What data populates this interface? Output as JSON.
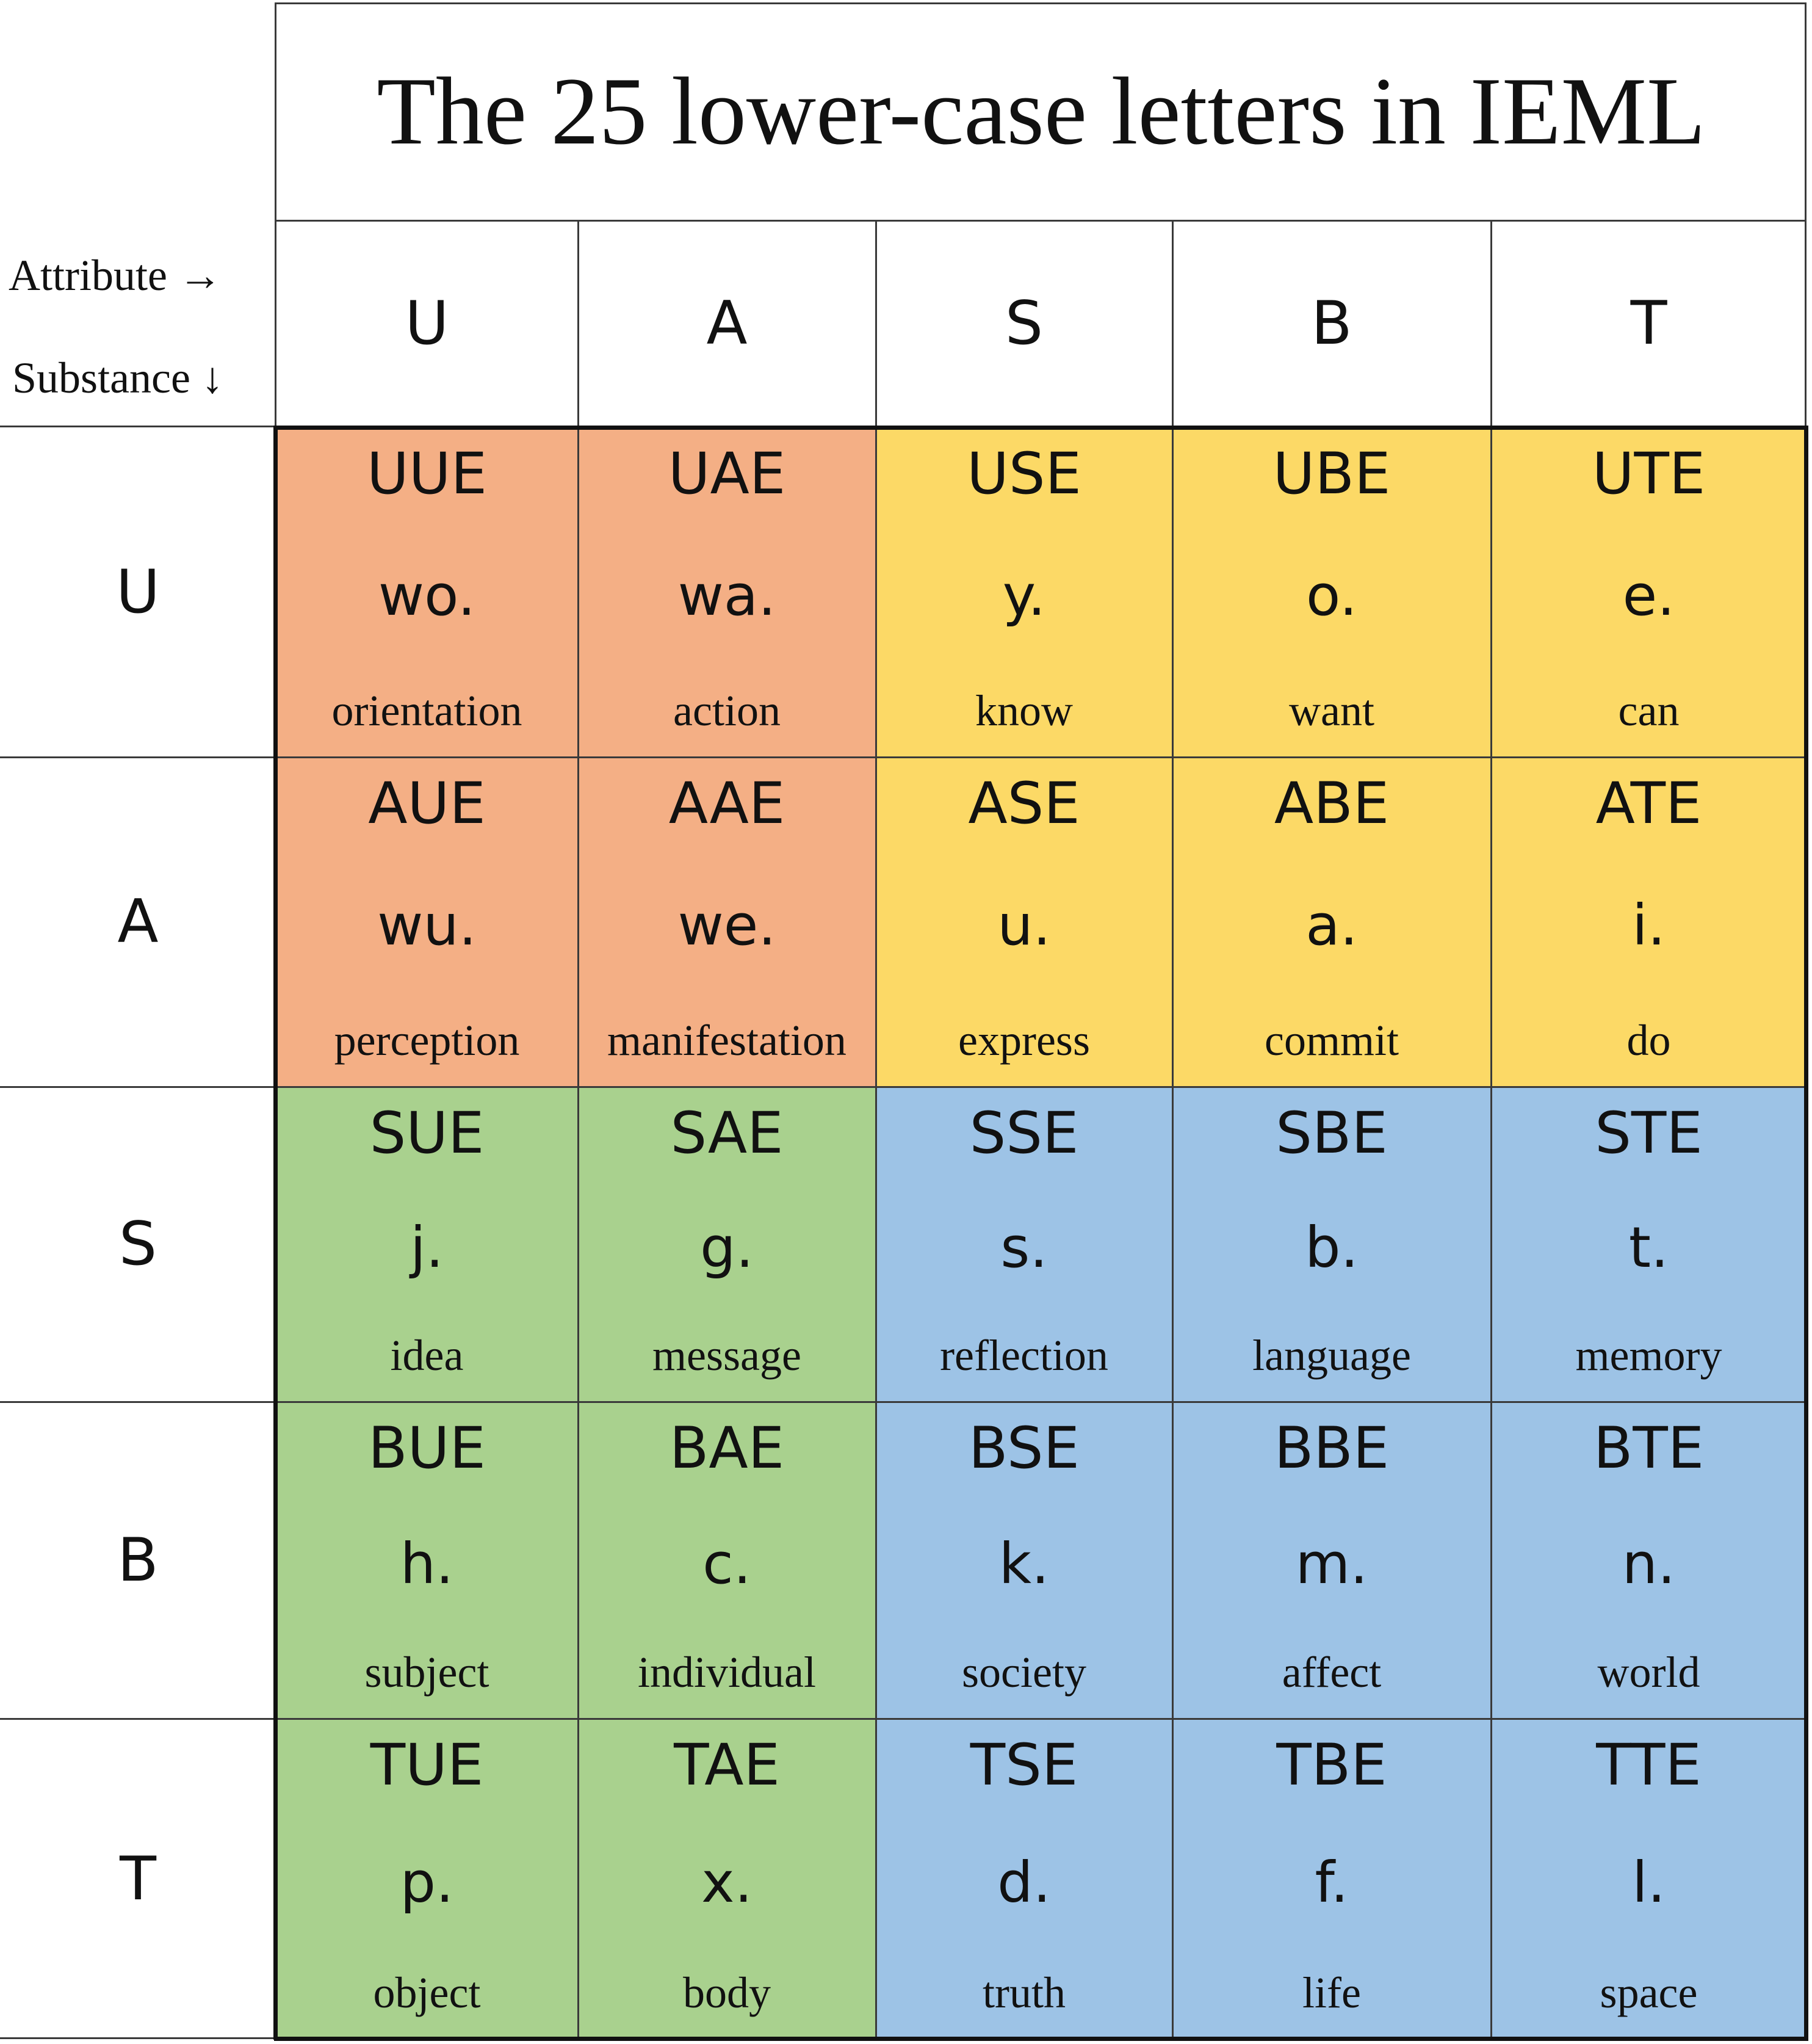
{
  "title": "The 25 lower-case letters in IEML",
  "axis": {
    "attribute": "Attribute →",
    "substance": "Substance ↓"
  },
  "columns": [
    "U",
    "A",
    "S",
    "B",
    "T"
  ],
  "rows": [
    "U",
    "A",
    "S",
    "B",
    "T"
  ],
  "colors": {
    "orange": "#F4AF85",
    "yellow": "#FCD966",
    "green": "#A9D18E",
    "blue": "#9DC3E6"
  },
  "cells": [
    [
      {
        "code": "UUE",
        "letter": "wo.",
        "meaning": "orientation",
        "color": "orange"
      },
      {
        "code": "UAE",
        "letter": "wa.",
        "meaning": "action",
        "color": "orange"
      },
      {
        "code": "USE",
        "letter": "y.",
        "meaning": "know",
        "color": "yellow"
      },
      {
        "code": "UBE",
        "letter": "o.",
        "meaning": "want",
        "color": "yellow"
      },
      {
        "code": "UTE",
        "letter": "e.",
        "meaning": "can",
        "color": "yellow"
      }
    ],
    [
      {
        "code": "AUE",
        "letter": "wu.",
        "meaning": "perception",
        "color": "orange"
      },
      {
        "code": "AAE",
        "letter": "we.",
        "meaning": "manifestation",
        "color": "orange"
      },
      {
        "code": "ASE",
        "letter": "u.",
        "meaning": "express",
        "color": "yellow"
      },
      {
        "code": "ABE",
        "letter": "a.",
        "meaning": "commit",
        "color": "yellow"
      },
      {
        "code": "ATE",
        "letter": "i.",
        "meaning": "do",
        "color": "yellow"
      }
    ],
    [
      {
        "code": "SUE",
        "letter": "j.",
        "meaning": "idea",
        "color": "green"
      },
      {
        "code": "SAE",
        "letter": "g.",
        "meaning": "message",
        "color": "green"
      },
      {
        "code": "SSE",
        "letter": "s.",
        "meaning": "reflection",
        "color": "blue"
      },
      {
        "code": "SBE",
        "letter": "b.",
        "meaning": "language",
        "color": "blue"
      },
      {
        "code": "STE",
        "letter": "t.",
        "meaning": "memory",
        "color": "blue"
      }
    ],
    [
      {
        "code": "BUE",
        "letter": "h.",
        "meaning": "subject",
        "color": "green"
      },
      {
        "code": "BAE",
        "letter": "c.",
        "meaning": "individual",
        "color": "green"
      },
      {
        "code": "BSE",
        "letter": "k.",
        "meaning": "society",
        "color": "blue"
      },
      {
        "code": "BBE",
        "letter": "m.",
        "meaning": "affect",
        "color": "blue"
      },
      {
        "code": "BTE",
        "letter": "n.",
        "meaning": "world",
        "color": "blue"
      }
    ],
    [
      {
        "code": "TUE",
        "letter": "p.",
        "meaning": "object",
        "color": "green"
      },
      {
        "code": "TAE",
        "letter": "x.",
        "meaning": "body",
        "color": "green"
      },
      {
        "code": "TSE",
        "letter": "d.",
        "meaning": "truth",
        "color": "blue"
      },
      {
        "code": "TBE",
        "letter": "f.",
        "meaning": "life",
        "color": "blue"
      },
      {
        "code": "TTE",
        "letter": "l.",
        "meaning": "space",
        "color": "blue"
      }
    ]
  ]
}
